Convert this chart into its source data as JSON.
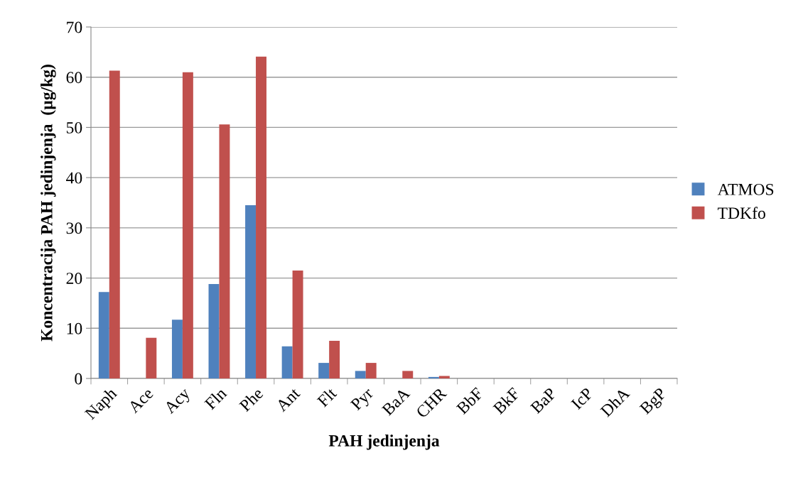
{
  "chart_data": {
    "type": "bar",
    "xlabel": "PAH jedinjenja",
    "ylabel": "Koncentracija PAH jedinjenja  (µg/kg)",
    "categories": [
      "Naph",
      "Ace",
      "Acy",
      "Fln",
      "Phe",
      "Ant",
      "Flt",
      "Pyr",
      "BaA",
      "CHR",
      "BbF",
      "BkF",
      "BaP",
      "IcP",
      "DhA",
      "BgP"
    ],
    "series": [
      {
        "name": "ATMOS",
        "color": "#4f81bd",
        "values": [
          17.2,
          0,
          11.7,
          18.8,
          34.5,
          6.4,
          3.1,
          1.5,
          0,
          0.3,
          0,
          0,
          0,
          0,
          0,
          0
        ]
      },
      {
        "name": "TDKfo",
        "color": "#c0504d",
        "values": [
          61.3,
          8.1,
          61.0,
          50.6,
          64.1,
          21.5,
          7.5,
          3.1,
          1.5,
          0.5,
          0,
          0,
          0,
          0,
          0,
          0
        ]
      }
    ],
    "ylim": [
      0,
      70
    ],
    "yticks": [
      0,
      10,
      20,
      30,
      40,
      50,
      60,
      70
    ],
    "grid": "y",
    "legend": "right"
  }
}
